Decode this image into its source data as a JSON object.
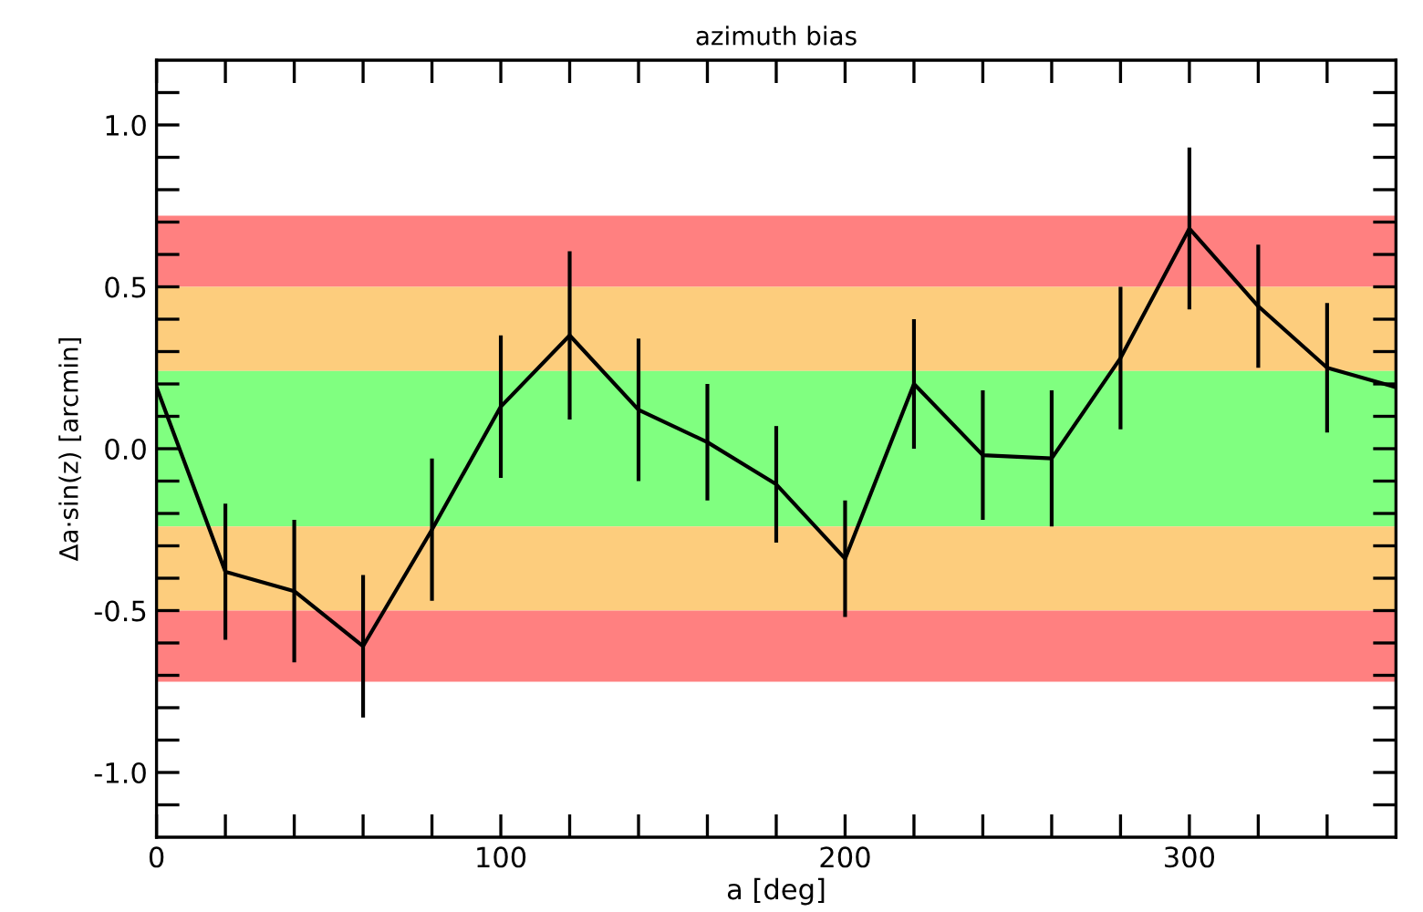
{
  "chart_data": {
    "type": "line",
    "title": "azimuth bias",
    "xlabel": "a [deg]",
    "ylabel": "Δa·sin(z) [arcmin]",
    "x": [
      0,
      20,
      40,
      60,
      80,
      100,
      120,
      140,
      160,
      180,
      200,
      220,
      240,
      260,
      280,
      300,
      320,
      340,
      360
    ],
    "series": [
      {
        "color": "#000000",
        "values": [
          0.19,
          -0.38,
          -0.44,
          -0.61,
          -0.25,
          0.13,
          0.35,
          0.12,
          0.02,
          -0.11,
          -0.34,
          0.2,
          -0.02,
          -0.03,
          0.28,
          0.68,
          0.44,
          0.25,
          0.19
        ],
        "errors": [
          null,
          0.21,
          0.22,
          0.22,
          0.22,
          0.22,
          0.26,
          0.22,
          0.18,
          0.18,
          0.18,
          0.2,
          0.2,
          0.21,
          0.22,
          0.25,
          0.19,
          0.2,
          null
        ]
      }
    ],
    "bands": [
      {
        "axis": "y",
        "from": 0.5,
        "to": 0.72,
        "color": "#ff8080"
      },
      {
        "axis": "y",
        "from": 0.24,
        "to": 0.5,
        "color": "#fdcd7d"
      },
      {
        "axis": "y",
        "from": -0.24,
        "to": 0.24,
        "color": "#80ff80"
      },
      {
        "axis": "y",
        "from": -0.5,
        "to": -0.24,
        "color": "#fdcd7d"
      },
      {
        "axis": "y",
        "from": -0.72,
        "to": -0.5,
        "color": "#ff8080"
      }
    ],
    "xlim": [
      0,
      360
    ],
    "ylim": [
      -1.2,
      1.2
    ],
    "xticks": [
      0,
      {
        "value": 20,
        "label": null
      },
      {
        "value": 40,
        "label": null
      },
      {
        "value": 60,
        "label": null
      },
      {
        "value": 80,
        "label": null
      },
      100,
      {
        "value": 120,
        "label": null
      },
      {
        "value": 140,
        "label": null
      },
      {
        "value": 160,
        "label": null
      },
      {
        "value": 180,
        "label": null
      },
      200,
      {
        "value": 220,
        "label": null
      },
      {
        "value": 240,
        "label": null
      },
      {
        "value": 260,
        "label": null
      },
      {
        "value": 280,
        "label": null
      },
      300,
      {
        "value": 320,
        "label": null
      },
      {
        "value": 340,
        "label": null
      }
    ],
    "yticks": [
      {
        "value": -1.1,
        "label": null
      },
      {
        "value": -1.0,
        "label": "-1.0"
      },
      {
        "value": -0.9,
        "label": null
      },
      {
        "value": -0.8,
        "label": null
      },
      {
        "value": -0.7,
        "label": null
      },
      {
        "value": -0.6,
        "label": null
      },
      {
        "value": -0.5,
        "label": "-0.5"
      },
      {
        "value": -0.4,
        "label": null
      },
      {
        "value": -0.3,
        "label": null
      },
      {
        "value": -0.2,
        "label": null
      },
      {
        "value": -0.1,
        "label": null
      },
      {
        "value": 0.0,
        "label": "0.0"
      },
      {
        "value": 0.1,
        "label": null
      },
      {
        "value": 0.2,
        "label": null
      },
      {
        "value": 0.3,
        "label": null
      },
      {
        "value": 0.4,
        "label": null
      },
      {
        "value": 0.5,
        "label": "0.5"
      },
      {
        "value": 0.6,
        "label": null
      },
      {
        "value": 0.7,
        "label": null
      },
      {
        "value": 0.8,
        "label": null
      },
      {
        "value": 0.9,
        "label": null
      },
      {
        "value": 1.0,
        "label": "1.0"
      },
      {
        "value": 1.1,
        "label": null
      }
    ],
    "grid": false,
    "legend": false,
    "marker": "none",
    "line_style": "solid"
  }
}
